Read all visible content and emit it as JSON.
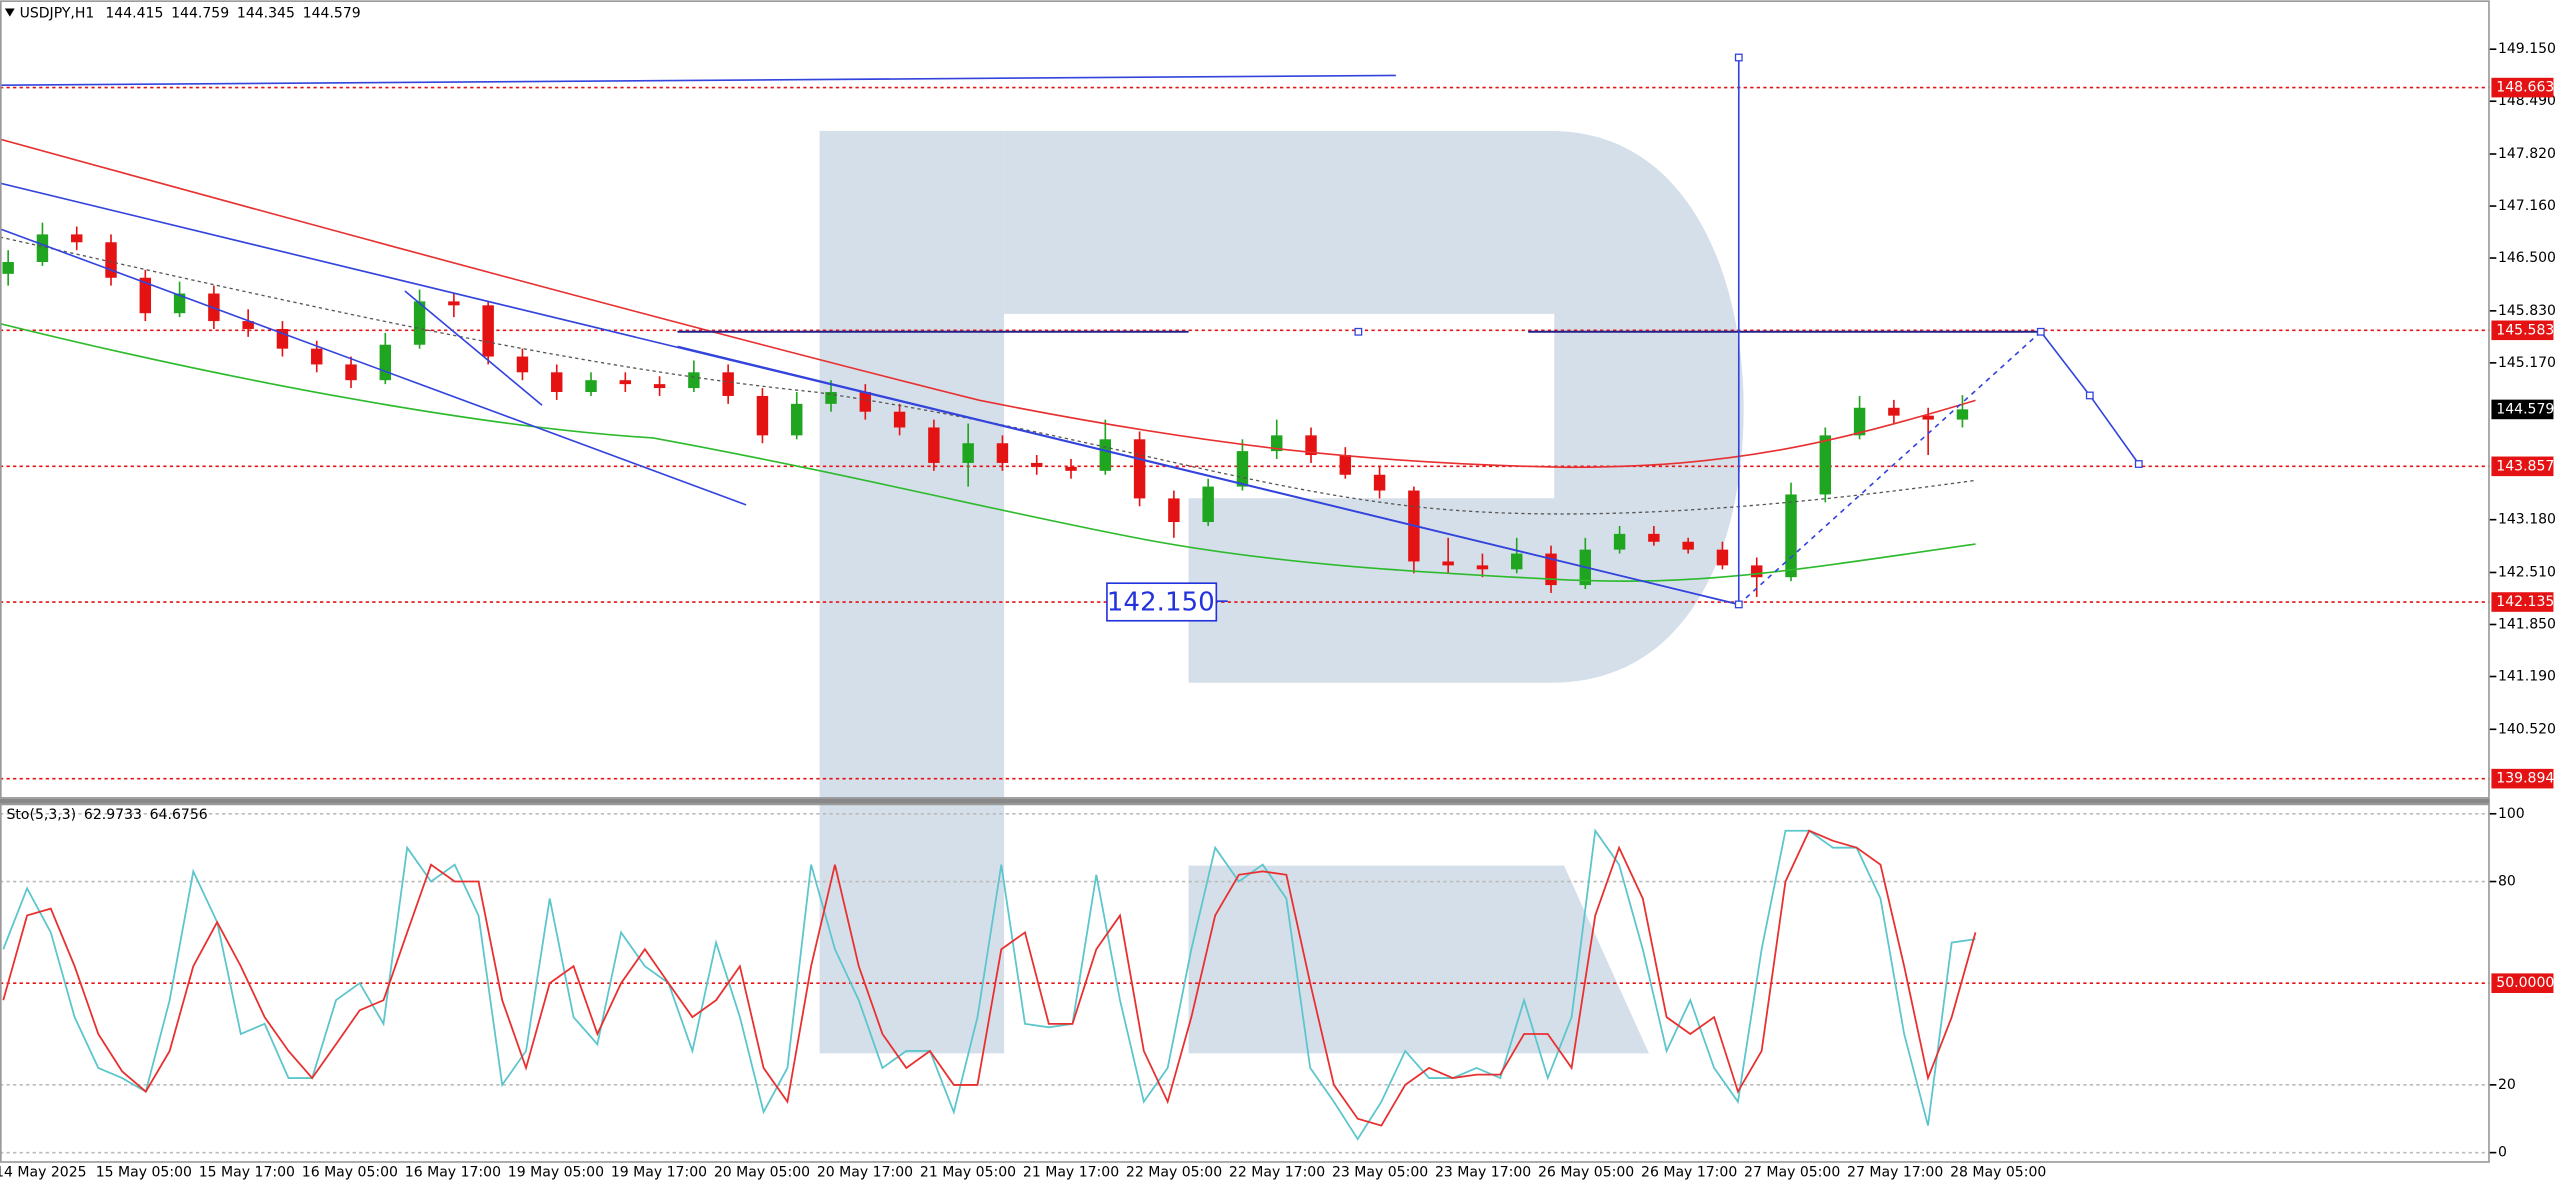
{
  "chart_data": [
    {
      "type": "candlestick",
      "header": {
        "symbol": "USDJPY,H1",
        "ohlc": [
          144.415,
          144.759,
          144.345,
          144.579
        ]
      },
      "time_labels": [
        "14 May 2025",
        "15 May 05:00",
        "15 May 17:00",
        "16 May 05:00",
        "16 May 17:00",
        "19 May 05:00",
        "19 May 17:00",
        "20 May 05:00",
        "20 May 17:00",
        "21 May 05:00",
        "21 May 17:00",
        "22 May 05:00",
        "22 May 17:00",
        "23 May 05:00",
        "23 May 17:00",
        "26 May 05:00",
        "26 May 17:00",
        "27 May 05:00",
        "27 May 17:00",
        "28 May 05:00"
      ],
      "open": [
        146.3,
        146.45,
        146.8,
        146.7,
        146.25,
        145.8,
        146.05,
        145.7,
        145.6,
        145.35,
        145.15,
        144.95,
        145.4,
        145.95,
        145.9,
        145.25,
        145.05,
        144.8,
        144.95,
        144.9,
        144.85,
        145.05,
        144.75,
        144.25,
        144.65,
        144.8,
        144.55,
        144.35,
        143.9,
        144.15,
        143.9,
        143.85,
        143.8,
        144.2,
        143.45,
        143.15,
        143.6,
        144.05,
        144.25,
        144.0,
        143.75,
        143.55,
        142.65,
        142.6,
        142.55,
        142.75,
        142.35,
        142.8,
        143.0,
        142.9,
        142.8,
        142.6,
        142.45,
        143.5,
        144.25,
        144.6,
        144.5,
        144.45
      ],
      "high": [
        146.6,
        146.95,
        146.9,
        146.8,
        146.35,
        146.2,
        146.15,
        145.85,
        145.7,
        145.45,
        145.25,
        145.55,
        146.1,
        146.05,
        145.95,
        145.35,
        145.15,
        145.05,
        145.05,
        145.0,
        145.2,
        145.15,
        144.85,
        144.8,
        144.95,
        144.9,
        144.65,
        144.45,
        144.4,
        144.25,
        144.0,
        143.95,
        144.45,
        144.3,
        143.55,
        143.7,
        144.2,
        144.45,
        144.35,
        144.1,
        143.85,
        143.6,
        142.95,
        142.75,
        142.95,
        142.85,
        142.95,
        143.1,
        143.1,
        142.95,
        142.9,
        142.7,
        143.65,
        144.35,
        144.75,
        144.7,
        144.6,
        144.76
      ],
      "low": [
        146.15,
        146.4,
        146.6,
        146.15,
        145.7,
        145.75,
        145.6,
        145.5,
        145.25,
        145.05,
        144.85,
        144.9,
        145.35,
        145.75,
        145.15,
        144.95,
        144.7,
        144.75,
        144.8,
        144.75,
        144.8,
        144.65,
        144.15,
        144.2,
        144.55,
        144.45,
        144.25,
        143.8,
        143.6,
        143.8,
        143.75,
        143.7,
        143.75,
        143.35,
        142.95,
        143.1,
        143.55,
        143.95,
        143.9,
        143.7,
        143.45,
        142.5,
        142.5,
        142.45,
        142.5,
        142.25,
        142.3,
        142.75,
        142.85,
        142.75,
        142.55,
        142.2,
        142.4,
        143.4,
        144.2,
        144.4,
        144.0,
        144.35
      ],
      "close": [
        146.45,
        146.8,
        146.7,
        146.25,
        145.8,
        146.05,
        145.7,
        145.6,
        145.35,
        145.15,
        144.95,
        145.4,
        145.95,
        145.9,
        145.25,
        145.05,
        144.8,
        144.95,
        144.9,
        144.85,
        145.05,
        144.75,
        144.25,
        144.65,
        144.8,
        144.55,
        144.35,
        143.9,
        144.15,
        143.9,
        143.85,
        143.8,
        144.2,
        143.45,
        143.15,
        143.6,
        144.05,
        144.25,
        144.0,
        143.75,
        143.55,
        142.65,
        142.6,
        142.55,
        142.75,
        142.35,
        142.8,
        143.0,
        142.9,
        142.8,
        142.6,
        142.45,
        143.5,
        144.25,
        144.6,
        144.5,
        144.45,
        144.58
      ],
      "up_color": "#1fa51f",
      "down_color": "#e41212",
      "ylim": [
        139.66,
        149.77
      ],
      "yticks": [
        {
          "value": 149.15,
          "label": "149.150"
        },
        {
          "value": 148.49,
          "label": "148.490"
        },
        {
          "value": 147.82,
          "label": "147.820"
        },
        {
          "value": 147.16,
          "label": "147.160"
        },
        {
          "value": 146.5,
          "label": "146.500"
        },
        {
          "value": 145.83,
          "label": "145.830"
        },
        {
          "value": 145.17,
          "label": "145.170"
        },
        {
          "value": 143.18,
          "label": "143.180"
        },
        {
          "value": 142.51,
          "label": "142.510"
        },
        {
          "value": 141.85,
          "label": "141.850"
        },
        {
          "value": 141.19,
          "label": "141.190"
        },
        {
          "value": 140.52,
          "label": "140.520"
        }
      ],
      "levels": [
        148.663,
        145.583,
        143.857,
        142.135,
        139.894
      ],
      "level_color": "#e41212",
      "last_price": 144.579,
      "annotation": "142.150"
    },
    {
      "type": "line",
      "title": "Sto(5,3,3)",
      "indicator_values": [
        62.9733,
        64.6756
      ],
      "series": [
        {
          "color": "#5cc6cc",
          "values": [
            60,
            78,
            65,
            40,
            25,
            22,
            18,
            45,
            83,
            68,
            35,
            38,
            22,
            22,
            45,
            50,
            38,
            90,
            80,
            85,
            70,
            20,
            30,
            75,
            40,
            32,
            65,
            55,
            50,
            30,
            62,
            40,
            12,
            25,
            85,
            60,
            45,
            25,
            30,
            30,
            12,
            40,
            85,
            38,
            37,
            38,
            82,
            45,
            15,
            25,
            60,
            90,
            80,
            85,
            75,
            25,
            15,
            4,
            15,
            30,
            22,
            22,
            25,
            22,
            45,
            22,
            40,
            95,
            85,
            60,
            30,
            45,
            25,
            15,
            60,
            95,
            95,
            90,
            90,
            75,
            35,
            8,
            62,
            63
          ]
        },
        {
          "color": "#e83030",
          "values": [
            45,
            70,
            72,
            55,
            35,
            24,
            18,
            30,
            55,
            68,
            55,
            40,
            30,
            22,
            32,
            42,
            45,
            65,
            85,
            80,
            80,
            45,
            25,
            50,
            55,
            35,
            50,
            60,
            50,
            40,
            45,
            55,
            25,
            15,
            55,
            85,
            55,
            35,
            25,
            30,
            20,
            20,
            60,
            65,
            38,
            38,
            60,
            70,
            30,
            15,
            40,
            70,
            82,
            83,
            82,
            50,
            20,
            10,
            8,
            20,
            25,
            22,
            23,
            23,
            35,
            35,
            25,
            70,
            90,
            75,
            40,
            35,
            40,
            18,
            30,
            80,
            95,
            92,
            90,
            85,
            55,
            22,
            40,
            65
          ]
        }
      ],
      "ylim": [
        -3,
        103
      ],
      "yticks": [
        100,
        80,
        20,
        0
      ],
      "grid": true,
      "level": {
        "value": 50,
        "label": "50.0000"
      }
    }
  ]
}
